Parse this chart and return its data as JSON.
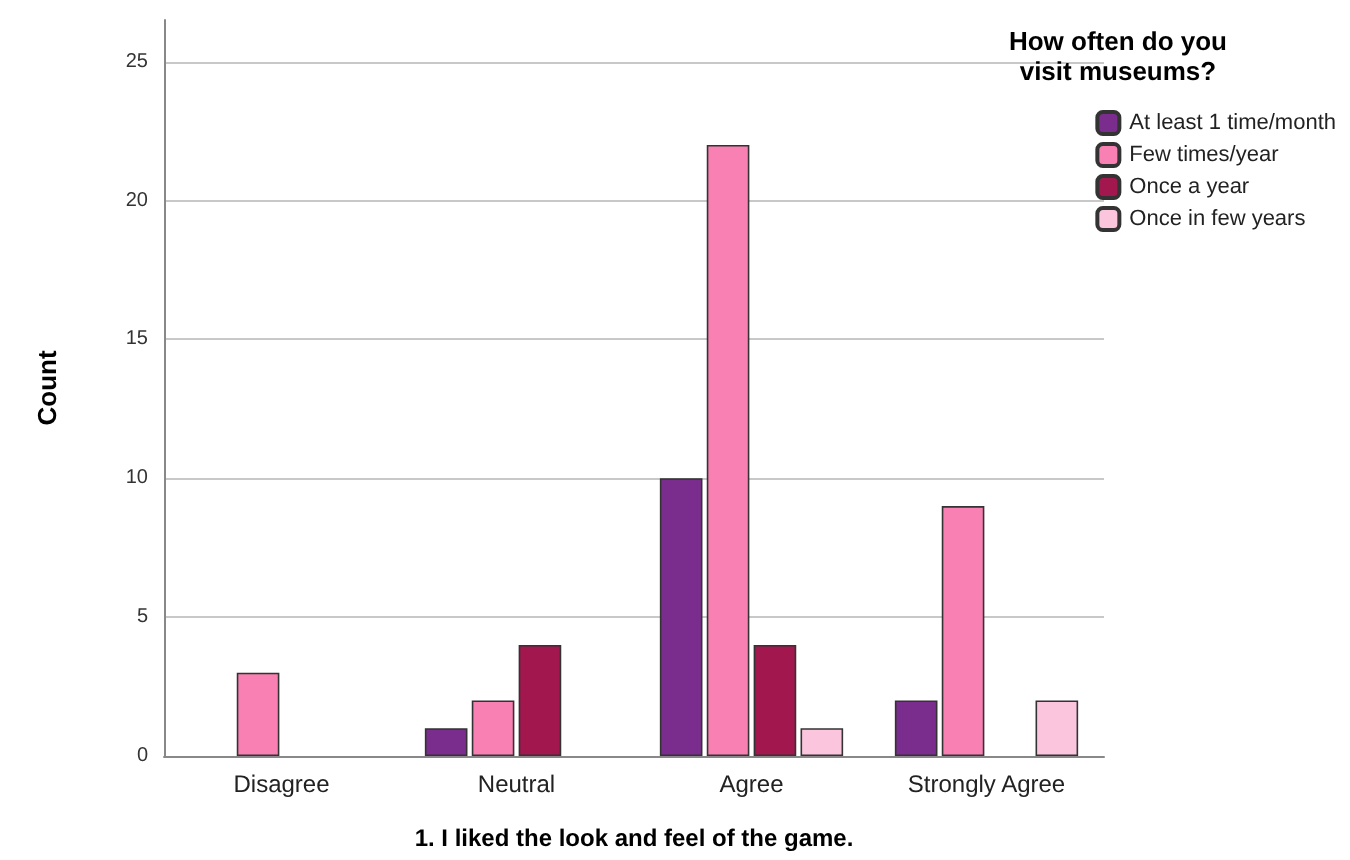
{
  "chart_data": {
    "type": "bar",
    "xlabel": "1. I liked the look and feel of the game.",
    "ylabel": "Count",
    "legend_title": "How often do you\nvisit museums?",
    "categories": [
      "Disagree",
      "Neutral",
      "Agree",
      "Strongly Agree"
    ],
    "series": [
      {
        "name": "At least 1 time/month",
        "color": "#7b2d8e",
        "values": [
          0,
          1,
          10,
          2
        ]
      },
      {
        "name": "Few times/year",
        "color": "#f880b2",
        "values": [
          3,
          2,
          22,
          9
        ]
      },
      {
        "name": "Once a year",
        "color": "#a3174f",
        "values": [
          0,
          4,
          4,
          0
        ]
      },
      {
        "name": "Once in few years",
        "color": "#fcc5de",
        "values": [
          0,
          0,
          1,
          2
        ]
      }
    ],
    "ylim": [
      0,
      26.5
    ],
    "yticks": [
      0,
      5,
      10,
      15,
      20,
      25
    ],
    "grid": "y",
    "legend": "top right"
  }
}
